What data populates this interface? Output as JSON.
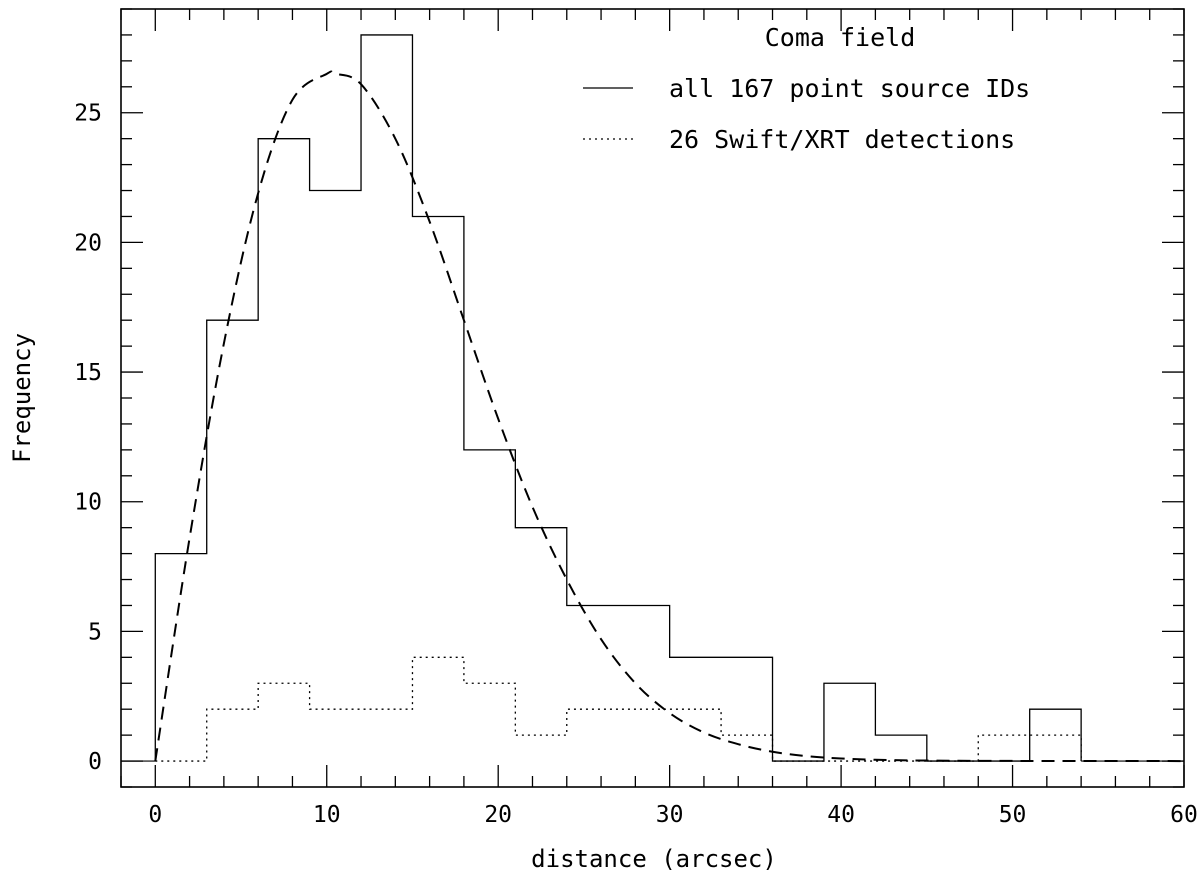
{
  "chart_data": {
    "type": "histogram",
    "xlabel": "distance (arcsec)",
    "ylabel": "Frequency",
    "xlim": [
      -2,
      60
    ],
    "ylim": [
      -1,
      29
    ],
    "xticks": [
      0,
      10,
      20,
      30,
      40,
      50,
      60
    ],
    "yticks": [
      0,
      5,
      10,
      15,
      20,
      25
    ],
    "grid": false,
    "legend": {
      "position": "top-right",
      "title": "Coma field"
    },
    "bins": [
      0,
      3,
      6,
      9,
      12,
      15,
      18,
      21,
      24,
      27,
      30,
      33,
      36,
      39,
      42,
      45,
      48,
      51,
      54
    ],
    "series": [
      {
        "name": "all 167 point source IDs",
        "style": "solid",
        "counts": [
          8,
          17,
          24,
          22,
          28,
          21,
          12,
          9,
          6,
          6,
          4,
          4,
          0,
          3,
          1,
          0,
          0,
          2
        ]
      },
      {
        "name": "26 Swift/XRT detections",
        "style": "dotted",
        "counts": [
          0,
          2,
          3,
          2,
          2,
          4,
          3,
          1,
          2,
          2,
          2,
          1,
          0,
          0,
          0,
          0,
          1,
          1
        ]
      }
    ],
    "fit_curve": {
      "style": "dashed",
      "x": [
        0,
        2,
        4,
        6,
        8,
        10,
        10.5,
        12,
        14,
        16,
        18,
        20,
        22,
        24,
        26,
        28,
        30,
        32,
        34,
        36,
        38,
        40,
        42,
        45,
        50,
        60
      ],
      "y": [
        0,
        8.6,
        16.1,
        21.9,
        25.5,
        26.5,
        26.5,
        26.1,
        24.0,
        20.8,
        17.0,
        13.2,
        9.8,
        7.0,
        4.7,
        3.0,
        1.85,
        1.1,
        0.65,
        0.36,
        0.19,
        0.1,
        0.05,
        0.02,
        0.005,
        0
      ]
    }
  }
}
